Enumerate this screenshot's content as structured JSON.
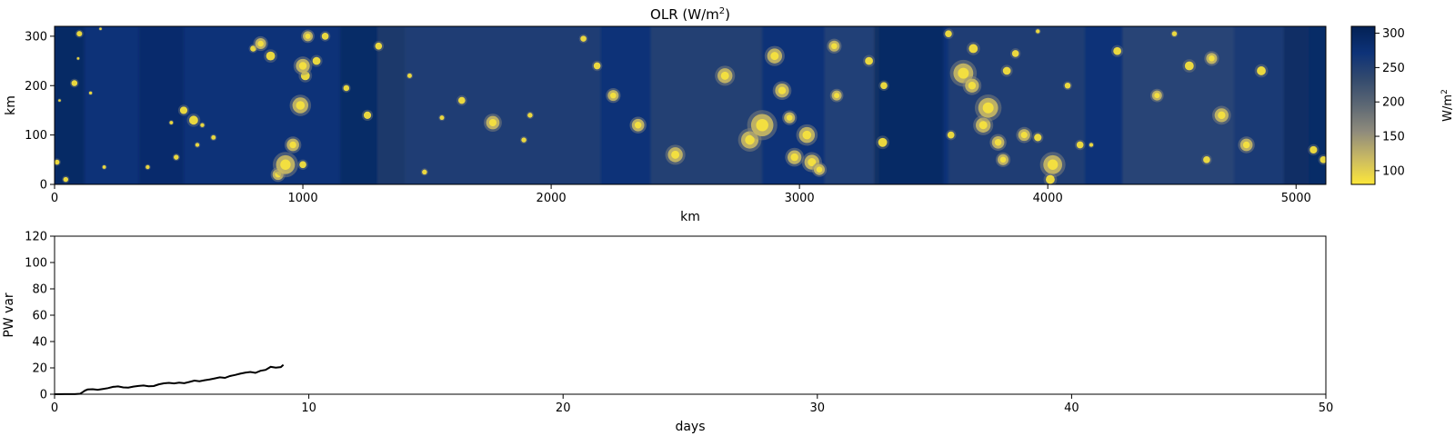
{
  "chart_data": [
    {
      "type": "heatmap",
      "title": "OLR (W/m",
      "title_sup": "2",
      "title_close": ")",
      "xlabel": "km",
      "ylabel": "km",
      "xlim": [
        0,
        5120
      ],
      "ylim": [
        0,
        320
      ],
      "xticks": [
        0,
        1000,
        2000,
        3000,
        4000,
        5000
      ],
      "yticks": [
        0,
        100,
        200,
        300
      ],
      "colormap": "cividis_r",
      "colormap_colors": [
        "#fde73a",
        "#c9b963",
        "#8f8b7c",
        "#5d6874",
        "#334a6e",
        "#0d3278",
        "#032154"
      ],
      "colorbar": {
        "label": "W/m",
        "label_sup": "2",
        "range": [
          80,
          310
        ],
        "ticks": [
          100,
          150,
          200,
          250,
          300
        ]
      },
      "convective_cells_km": [
        [
          10,
          45,
          10
        ],
        [
          100,
          305,
          11
        ],
        [
          80,
          205,
          12
        ],
        [
          45,
          10,
          10
        ],
        [
          20,
          170,
          5
        ],
        [
          185,
          315,
          5
        ],
        [
          145,
          185,
          6
        ],
        [
          95,
          255,
          5
        ],
        [
          200,
          35,
          7
        ],
        [
          375,
          35,
          8
        ],
        [
          470,
          125,
          7
        ],
        [
          490,
          55,
          10
        ],
        [
          520,
          150,
          15
        ],
        [
          560,
          130,
          18
        ],
        [
          575,
          80,
          8
        ],
        [
          595,
          120,
          8
        ],
        [
          640,
          95,
          9
        ],
        [
          800,
          275,
          12
        ],
        [
          830,
          285,
          22
        ],
        [
          870,
          260,
          18
        ],
        [
          900,
          20,
          22
        ],
        [
          930,
          40,
          38
        ],
        [
          960,
          80,
          25
        ],
        [
          990,
          160,
          32
        ],
        [
          1010,
          220,
          18
        ],
        [
          1000,
          240,
          28
        ],
        [
          1020,
          300,
          20
        ],
        [
          1000,
          40,
          14
        ],
        [
          1055,
          250,
          16
        ],
        [
          1090,
          300,
          14
        ],
        [
          1175,
          195,
          12
        ],
        [
          1260,
          140,
          15
        ],
        [
          1305,
          280,
          14
        ],
        [
          1430,
          220,
          9
        ],
        [
          1490,
          25,
          10
        ],
        [
          1560,
          135,
          9
        ],
        [
          1640,
          170,
          14
        ],
        [
          1765,
          125,
          27
        ],
        [
          1890,
          90,
          10
        ],
        [
          1915,
          140,
          10
        ],
        [
          2130,
          295,
          12
        ],
        [
          2185,
          240,
          14
        ],
        [
          2250,
          180,
          22
        ],
        [
          2350,
          120,
          25
        ],
        [
          2500,
          60,
          30
        ],
        [
          2700,
          220,
          30
        ],
        [
          2800,
          90,
          35
        ],
        [
          2850,
          120,
          45
        ],
        [
          2900,
          260,
          30
        ],
        [
          2930,
          190,
          28
        ],
        [
          2960,
          135,
          22
        ],
        [
          2980,
          55,
          28
        ],
        [
          3030,
          100,
          32
        ],
        [
          3050,
          45,
          30
        ],
        [
          3080,
          30,
          22
        ],
        [
          3140,
          280,
          22
        ],
        [
          3150,
          180,
          20
        ],
        [
          3280,
          250,
          16
        ],
        [
          3335,
          85,
          18
        ],
        [
          3340,
          200,
          14
        ],
        [
          3600,
          305,
          14
        ],
        [
          3610,
          100,
          14
        ],
        [
          3660,
          225,
          40
        ],
        [
          3695,
          200,
          28
        ],
        [
          3700,
          275,
          18
        ],
        [
          3740,
          120,
          30
        ],
        [
          3760,
          155,
          40
        ],
        [
          3800,
          85,
          25
        ],
        [
          3820,
          50,
          22
        ],
        [
          3835,
          230,
          16
        ],
        [
          3870,
          265,
          14
        ],
        [
          3905,
          100,
          24
        ],
        [
          3960,
          95,
          15
        ],
        [
          3960,
          310,
          8
        ],
        [
          4020,
          40,
          38
        ],
        [
          4010,
          10,
          18
        ],
        [
          4080,
          200,
          12
        ],
        [
          4130,
          80,
          14
        ],
        [
          4175,
          80,
          8
        ],
        [
          4280,
          270,
          16
        ],
        [
          4440,
          180,
          20
        ],
        [
          4510,
          305,
          10
        ],
        [
          4570,
          240,
          18
        ],
        [
          4640,
          50,
          14
        ],
        [
          4660,
          255,
          22
        ],
        [
          4700,
          140,
          28
        ],
        [
          4800,
          80,
          25
        ],
        [
          4860,
          230,
          18
        ],
        [
          5070,
          70,
          15
        ],
        [
          5110,
          50,
          14
        ]
      ]
    },
    {
      "type": "line",
      "xlabel": "days",
      "ylabel": "PW var",
      "xlim": [
        0,
        50
      ],
      "ylim": [
        0,
        120
      ],
      "xticks": [
        0,
        10,
        20,
        30,
        40,
        50
      ],
      "yticks": [
        0,
        20,
        40,
        60,
        80,
        100,
        120
      ],
      "series": [
        {
          "color": "#000000",
          "x": [
            0,
            0.4,
            0.8,
            1.0,
            1.1,
            1.2,
            1.3,
            1.5,
            1.7,
            1.9,
            2.1,
            2.3,
            2.5,
            2.7,
            2.9,
            3.1,
            3.3,
            3.5,
            3.7,
            3.9,
            4.1,
            4.3,
            4.5,
            4.7,
            4.9,
            5.1,
            5.3,
            5.5,
            5.7,
            5.9,
            6.1,
            6.3,
            6.5,
            6.7,
            6.9,
            7.1,
            7.3,
            7.5,
            7.7,
            7.9,
            8.1,
            8.3,
            8.5,
            8.7,
            8.9,
            9.0
          ],
          "y": [
            0,
            0.1,
            0.1,
            0.3,
            1.5,
            2.8,
            3.6,
            3.8,
            3.4,
            4.0,
            4.6,
            5.6,
            5.9,
            5.2,
            5.0,
            5.8,
            6.3,
            6.6,
            6.0,
            6.2,
            7.5,
            8.3,
            8.6,
            8.2,
            8.8,
            8.4,
            9.3,
            10.3,
            9.8,
            10.6,
            11.2,
            12.0,
            12.8,
            12.4,
            13.8,
            14.6,
            15.6,
            16.4,
            16.9,
            16.2,
            17.8,
            18.5,
            20.8,
            20.2,
            20.6,
            22.3
          ]
        }
      ]
    }
  ]
}
